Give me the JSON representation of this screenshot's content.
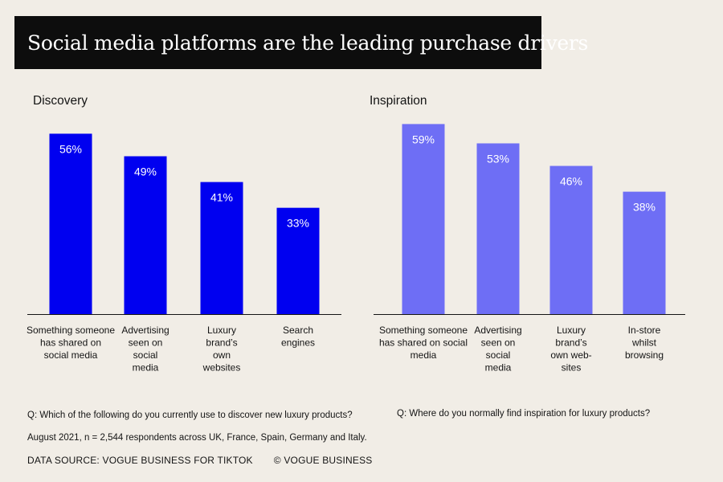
{
  "title": "Social media platforms are the leading purchase drivers",
  "colors": {
    "background": "#f1ede6",
    "title_bg": "#0d0d0d",
    "discovery_bar": "#0000f0",
    "inspiration_bar": "#6e6ef5"
  },
  "chart_data": [
    {
      "type": "bar",
      "title": "Discovery",
      "categories": [
        [
          "Something someone",
          "has shared on",
          "social media"
        ],
        [
          "Advertising",
          "seen on",
          "social",
          "media"
        ],
        [
          "Luxury",
          "brand’s",
          "own",
          "websites"
        ],
        [
          "Search",
          "engines"
        ]
      ],
      "values": [
        56,
        49,
        41,
        33
      ],
      "labels": [
        "56%",
        "49%",
        "41%",
        "33%"
      ],
      "unit": "%",
      "ylim": [
        0,
        65
      ]
    },
    {
      "type": "bar",
      "title": "Inspiration",
      "categories": [
        [
          "Something someone",
          "has shared on social",
          "media"
        ],
        [
          "Advertising",
          "seen on",
          "social",
          "media"
        ],
        [
          "Luxury",
          "brand’s",
          "own web-",
          "sites"
        ],
        [
          "In-store",
          "whilst",
          "browsing"
        ]
      ],
      "values": [
        59,
        53,
        46,
        38
      ],
      "labels": [
        "59%",
        "53%",
        "46%",
        "38%"
      ],
      "unit": "%",
      "ylim": [
        0,
        65
      ]
    }
  ],
  "footer": {
    "question_discovery": "Q: Which of the following do you currently use to discover new luxury products?",
    "question_inspiration": "Q:  Where do you normally find inspiration for luxury products?",
    "survey_note": "August 2021, n = 2,544 respondents across UK, France, Spain, Germany and Italy.",
    "data_source": "DATA SOURCE: VOGUE BUSINESS FOR TIKTOK",
    "copyright": "© VOGUE BUSINESS"
  }
}
